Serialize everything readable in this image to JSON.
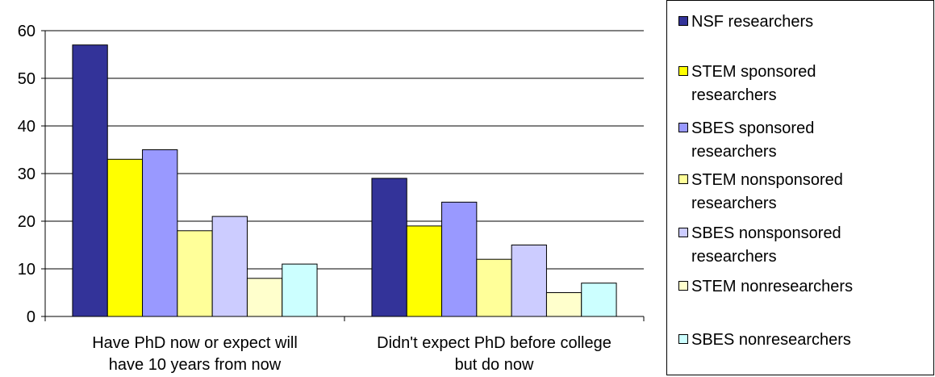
{
  "chart_data": {
    "type": "bar",
    "title": "",
    "xlabel": "",
    "ylabel": "",
    "ylim": [
      0,
      60
    ],
    "yticks": [
      "0",
      "10",
      "20",
      "30",
      "40",
      "50",
      "60"
    ],
    "grid": true,
    "categories": [
      [
        "Have PhD now or expect will",
        "have 10 years from now"
      ],
      [
        "Didn't expect PhD before college",
        "but do now"
      ]
    ],
    "series": [
      {
        "name": "NSF researchers",
        "color": "#333399",
        "values": [
          57,
          29
        ]
      },
      {
        "name": "STEM sponsored researchers",
        "color": "#FFFF00",
        "values": [
          33,
          19
        ]
      },
      {
        "name": "SBES sponsored researchers",
        "color": "#9999FF",
        "values": [
          35,
          24
        ]
      },
      {
        "name": "STEM nonsponsored researchers",
        "color": "#FFFF99",
        "values": [
          18,
          12
        ]
      },
      {
        "name": "SBES nonsponsored researchers",
        "color": "#CCCCFF",
        "values": [
          21,
          15
        ]
      },
      {
        "name": "STEM nonresearchers",
        "color": "#FFFFCC",
        "values": [
          8,
          5
        ]
      },
      {
        "name": "SBES nonresearchers",
        "color": "#CCFFFF",
        "values": [
          11,
          7
        ]
      }
    ],
    "legend": {
      "position": "right",
      "items": [
        {
          "lines": [
            "NSF researchers"
          ]
        },
        {
          "lines": [
            "STEM sponsored",
            "researchers"
          ]
        },
        {
          "lines": [
            "SBES sponsored",
            "researchers"
          ]
        },
        {
          "lines": [
            "STEM nonsponsored",
            "researchers"
          ]
        },
        {
          "lines": [
            "SBES nonsponsored",
            "researchers"
          ]
        },
        {
          "lines": [
            "STEM nonresearchers"
          ]
        },
        {
          "lines": [
            "SBES nonresearchers"
          ]
        }
      ]
    }
  }
}
